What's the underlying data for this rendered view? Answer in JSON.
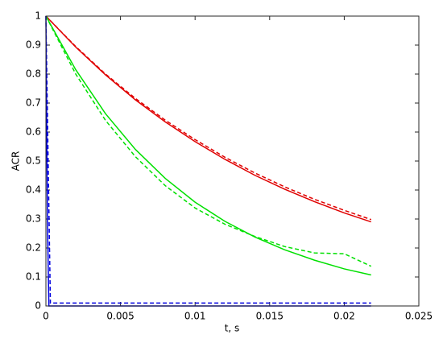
{
  "chart_data": {
    "type": "line",
    "xlabel": "t, s",
    "ylabel": "ACR",
    "xlim": [
      0,
      0.025
    ],
    "ylim": [
      0,
      1
    ],
    "xticks": [
      0,
      0.005,
      0.01,
      0.015,
      0.02,
      0.025
    ],
    "yticks": [
      0,
      0.1,
      0.2,
      0.3,
      0.4,
      0.5,
      0.6,
      0.7,
      0.8,
      0.9,
      1
    ],
    "grid": false,
    "series": [
      {
        "color": "#e00000",
        "dash": "solid",
        "x": [
          0,
          0.002,
          0.004,
          0.006,
          0.008,
          0.01,
          0.012,
          0.014,
          0.016,
          0.018,
          0.02,
          0.0218
        ],
        "values": [
          1,
          0.893,
          0.797,
          0.711,
          0.635,
          0.567,
          0.506,
          0.451,
          0.403,
          0.36,
          0.321,
          0.29
        ]
      },
      {
        "color": "#e00000",
        "dash": "dashed",
        "x": [
          0,
          0.002,
          0.004,
          0.006,
          0.008,
          0.01,
          0.012,
          0.014,
          0.016,
          0.018,
          0.02,
          0.0218
        ],
        "values": [
          1,
          0.895,
          0.8,
          0.716,
          0.641,
          0.574,
          0.513,
          0.459,
          0.411,
          0.368,
          0.33,
          0.298
        ]
      },
      {
        "color": "#00e000",
        "dash": "solid",
        "x": [
          0,
          0.002,
          0.004,
          0.006,
          0.008,
          0.01,
          0.012,
          0.014,
          0.016,
          0.018,
          0.02,
          0.0218
        ],
        "values": [
          1,
          0.815,
          0.663,
          0.54,
          0.44,
          0.358,
          0.292,
          0.238,
          0.194,
          0.158,
          0.128,
          0.107
        ]
      },
      {
        "color": "#00e000",
        "dash": "dashed",
        "x": [
          0,
          0.002,
          0.004,
          0.006,
          0.008,
          0.01,
          0.012,
          0.014,
          0.016,
          0.018,
          0.02,
          0.0218
        ],
        "values": [
          1,
          0.8,
          0.64,
          0.515,
          0.415,
          0.338,
          0.282,
          0.24,
          0.205,
          0.183,
          0.18,
          0.137
        ]
      },
      {
        "color": "#0000e0",
        "dash": "solid",
        "x": [
          0,
          0.0001,
          0.0002,
          0.0218
        ],
        "values": [
          1,
          0.3,
          0,
          0
        ]
      },
      {
        "color": "#0000e0",
        "dash": "dashed",
        "x": [
          0,
          0.00015,
          0.0003,
          0.0218
        ],
        "values": [
          1,
          0.5,
          0.01,
          0.01
        ]
      }
    ]
  }
}
